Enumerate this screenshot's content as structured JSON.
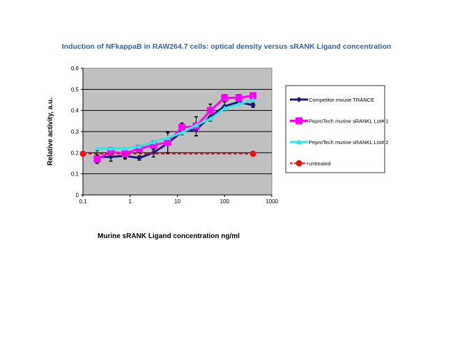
{
  "chart_data": {
    "type": "line",
    "title": "Induction of NFkappaB in RAW264.7 cells: optical density versus sRANK Ligand concentration",
    "xlabel": "Murine sRANK Ligand concentration ng/ml",
    "ylabel": "Relative activity, a.u.",
    "xscale": "log",
    "xlim": [
      0.1,
      1000
    ],
    "ylim": [
      0,
      0.6
    ],
    "xticks": [
      "0.1",
      "1",
      "10",
      "100",
      "1000"
    ],
    "yticks": [
      "0",
      "0.1",
      "0.2",
      "0.3",
      "0.4",
      "0.5",
      "0.6"
    ],
    "grid": true,
    "legend_position": "right",
    "x": [
      0.2,
      0.39,
      0.78,
      1.56,
      3.125,
      6.25,
      12.5,
      25,
      50,
      100,
      200,
      400
    ],
    "series": [
      {
        "name": "Competitor mouse TRANCE",
        "color": "#1a1a7a",
        "marker": "diamond",
        "values": [
          0.18,
          0.18,
          0.185,
          0.175,
          0.2,
          0.245,
          0.3,
          0.31,
          0.37,
          0.42,
          0.44,
          0.425
        ],
        "errors": [
          0.03,
          0.02,
          0.015,
          0.01,
          0.02,
          0.05,
          0.015,
          0.03,
          0.02,
          0.02,
          0.015,
          0.01
        ]
      },
      {
        "name": "PeproTech murine sRANKL Lot# 1",
        "color": "#ff00ff",
        "marker": "square",
        "values": [
          0.17,
          0.205,
          0.195,
          0.22,
          0.235,
          0.25,
          0.32,
          0.325,
          0.4,
          0.46,
          0.46,
          0.47
        ],
        "errors": [
          0.02,
          0.02,
          0.02,
          0.015,
          0.02,
          0.05,
          0.02,
          0.045,
          0.03,
          0.015,
          0.015,
          0.01
        ]
      },
      {
        "name": "PeproTech murine sRANKL Lot# 2",
        "color": "#33e6e6",
        "marker": "triangle",
        "values": [
          0.22,
          0.22,
          0.22,
          0.23,
          0.25,
          0.27,
          0.295,
          0.33,
          0.36,
          0.41,
          0.43,
          0.45
        ],
        "errors": [
          0,
          0,
          0,
          0,
          0,
          0,
          0,
          0,
          0,
          0,
          0,
          0
        ]
      },
      {
        "name": "untreated",
        "color": "#ee1111",
        "marker": "circle",
        "dashed": true,
        "x": [
          0.1,
          400
        ],
        "values": [
          0.195,
          0.195
        ]
      }
    ]
  }
}
